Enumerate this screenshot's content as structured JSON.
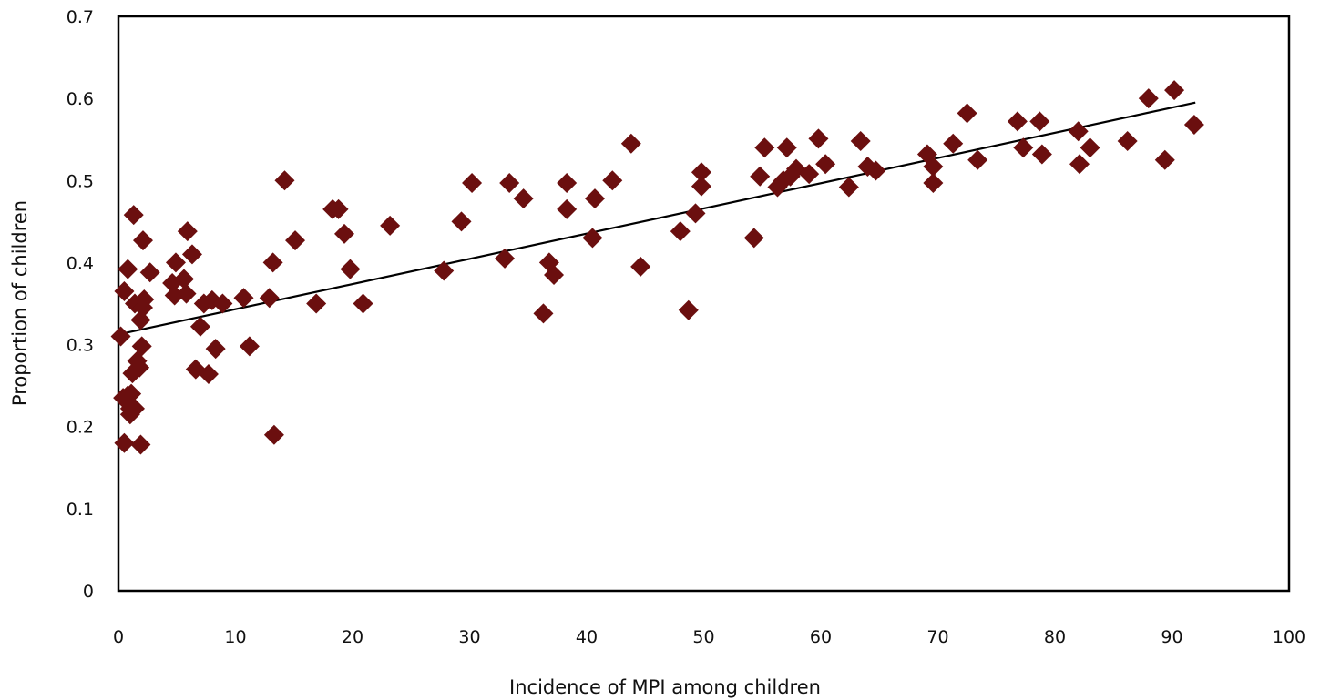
{
  "chart_data": {
    "type": "scatter",
    "title": "",
    "xlabel": "Incidence of MPI among children",
    "ylabel": "Proportion of children",
    "xlim": [
      0,
      100
    ],
    "ylim": [
      0,
      0.7
    ],
    "xticks": [
      "0",
      "10",
      "20",
      "30",
      "40",
      "50",
      "60",
      "70",
      "80",
      "90",
      "100"
    ],
    "yticks": [
      "0",
      "0.1",
      "0.2",
      "0.3",
      "0.4",
      "0.5",
      "0.6",
      "0.7"
    ],
    "grid": false,
    "legend": "none",
    "marker_color": "#6b0f0f",
    "trendline": {
      "type": "linear",
      "x": [
        0.2,
        92.0
      ],
      "y": [
        0.313,
        0.595
      ],
      "color": "#000000"
    },
    "points": [
      [
        0.2,
        0.31
      ],
      [
        0.5,
        0.365
      ],
      [
        0.8,
        0.392
      ],
      [
        0.4,
        0.235
      ],
      [
        0.5,
        0.18
      ],
      [
        0.8,
        0.238
      ],
      [
        1.0,
        0.222
      ],
      [
        1.0,
        0.215
      ],
      [
        1.1,
        0.24
      ],
      [
        1.4,
        0.222
      ],
      [
        1.2,
        0.265
      ],
      [
        1.4,
        0.35
      ],
      [
        1.3,
        0.458
      ],
      [
        1.6,
        0.28
      ],
      [
        1.8,
        0.272
      ],
      [
        1.9,
        0.33
      ],
      [
        2.1,
        0.345
      ],
      [
        2.0,
        0.298
      ],
      [
        2.2,
        0.355
      ],
      [
        1.9,
        0.178
      ],
      [
        2.1,
        0.427
      ],
      [
        2.7,
        0.388
      ],
      [
        4.9,
        0.4
      ],
      [
        4.6,
        0.375
      ],
      [
        4.8,
        0.36
      ],
      [
        5.6,
        0.38
      ],
      [
        5.8,
        0.362
      ],
      [
        5.9,
        0.438
      ],
      [
        6.3,
        0.41
      ],
      [
        6.6,
        0.27
      ],
      [
        7.0,
        0.322
      ],
      [
        7.3,
        0.35
      ],
      [
        7.7,
        0.264
      ],
      [
        8.0,
        0.354
      ],
      [
        8.3,
        0.295
      ],
      [
        8.9,
        0.35
      ],
      [
        10.7,
        0.357
      ],
      [
        11.2,
        0.298
      ],
      [
        12.9,
        0.357
      ],
      [
        13.2,
        0.4
      ],
      [
        13.3,
        0.19
      ],
      [
        14.2,
        0.5
      ],
      [
        15.1,
        0.427
      ],
      [
        16.9,
        0.35
      ],
      [
        18.3,
        0.465
      ],
      [
        18.8,
        0.465
      ],
      [
        19.3,
        0.435
      ],
      [
        19.8,
        0.392
      ],
      [
        20.9,
        0.35
      ],
      [
        23.2,
        0.445
      ],
      [
        27.8,
        0.39
      ],
      [
        29.3,
        0.45
      ],
      [
        30.2,
        0.497
      ],
      [
        33.0,
        0.405
      ],
      [
        33.4,
        0.497
      ],
      [
        34.6,
        0.478
      ],
      [
        36.3,
        0.338
      ],
      [
        36.8,
        0.4
      ],
      [
        37.2,
        0.385
      ],
      [
        38.3,
        0.497
      ],
      [
        38.3,
        0.465
      ],
      [
        40.5,
        0.43
      ],
      [
        40.7,
        0.478
      ],
      [
        42.2,
        0.5
      ],
      [
        43.8,
        0.545
      ],
      [
        44.6,
        0.395
      ],
      [
        48.0,
        0.438
      ],
      [
        48.7,
        0.342
      ],
      [
        49.3,
        0.46
      ],
      [
        49.8,
        0.51
      ],
      [
        49.8,
        0.493
      ],
      [
        54.3,
        0.43
      ],
      [
        54.8,
        0.505
      ],
      [
        55.2,
        0.54
      ],
      [
        56.3,
        0.492
      ],
      [
        56.8,
        0.5
      ],
      [
        57.1,
        0.54
      ],
      [
        57.4,
        0.505
      ],
      [
        57.9,
        0.514
      ],
      [
        59.0,
        0.508
      ],
      [
        59.8,
        0.551
      ],
      [
        60.4,
        0.52
      ],
      [
        62.4,
        0.492
      ],
      [
        63.4,
        0.548
      ],
      [
        64.0,
        0.517
      ],
      [
        64.7,
        0.512
      ],
      [
        69.1,
        0.532
      ],
      [
        69.6,
        0.517
      ],
      [
        69.6,
        0.497
      ],
      [
        71.3,
        0.545
      ],
      [
        72.5,
        0.582
      ],
      [
        73.4,
        0.525
      ],
      [
        76.8,
        0.572
      ],
      [
        77.3,
        0.54
      ],
      [
        78.7,
        0.572
      ],
      [
        78.9,
        0.532
      ],
      [
        82.0,
        0.56
      ],
      [
        82.1,
        0.52
      ],
      [
        83.0,
        0.54
      ],
      [
        86.2,
        0.548
      ],
      [
        88.0,
        0.6
      ],
      [
        89.4,
        0.525
      ],
      [
        90.2,
        0.61
      ],
      [
        91.9,
        0.568
      ]
    ]
  }
}
